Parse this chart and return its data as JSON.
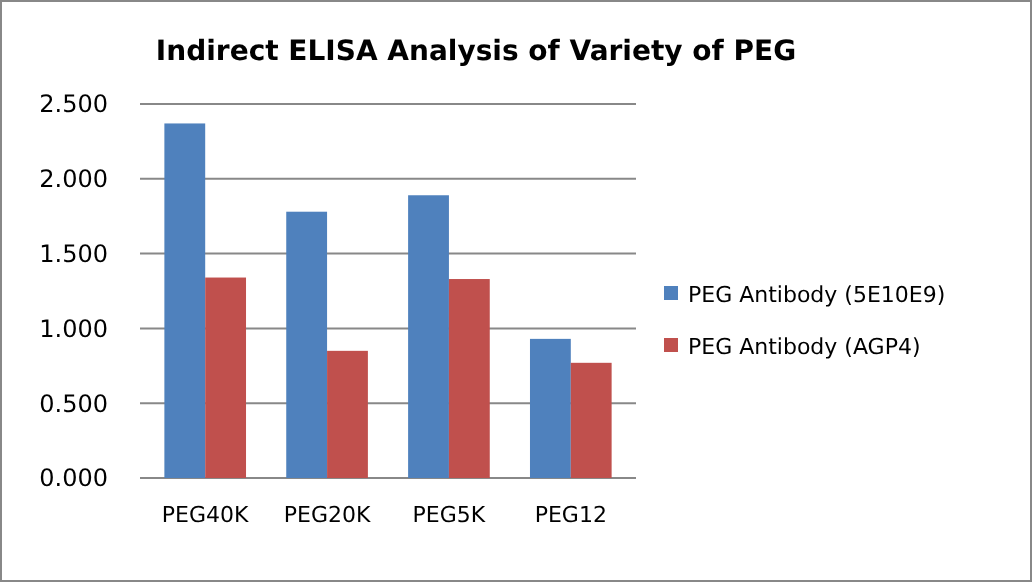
{
  "chart_data": {
    "type": "bar",
    "title": "Indirect ELISA Analysis of Variety of PEG",
    "categories": [
      "PEG40K",
      "PEG20K",
      "PEG5K",
      "PEG12"
    ],
    "series": [
      {
        "name": "PEG Antibody (5E10E9)",
        "color": "#4f81bd",
        "values": [
          2.37,
          1.78,
          1.89,
          0.93
        ]
      },
      {
        "name": "PEG Antibody (AGP4)",
        "color": "#c0504d",
        "values": [
          1.34,
          0.85,
          1.33,
          0.77
        ]
      }
    ],
    "ylim": [
      0,
      2.5
    ],
    "yticks": [
      {
        "value": 0,
        "label": "0.000"
      },
      {
        "value": 0.5,
        "label": "0.500"
      },
      {
        "value": 1,
        "label": "1.000"
      },
      {
        "value": 1.5,
        "label": "1.500"
      },
      {
        "value": 2,
        "label": "2.000"
      },
      {
        "value": 2.5,
        "label": "2.500"
      }
    ],
    "grid": "y",
    "legend": "right"
  }
}
